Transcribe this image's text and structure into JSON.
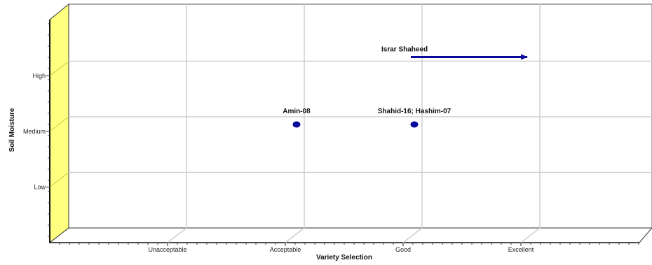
{
  "chart_data": {
    "type": "scatter",
    "title": "",
    "xlabel": "Variety Selection",
    "ylabel": "Soil Moisture",
    "x_categories": [
      "Unacceptable",
      "Acceptable",
      "Good",
      "Excellent"
    ],
    "y_categories": [
      "Low",
      "Medium",
      "High"
    ],
    "grid": true,
    "points": [
      {
        "label": "Amin-08",
        "x": "Acceptable",
        "y": "Medium"
      },
      {
        "label": "Shahid-16; Hashim-07",
        "x": "Good",
        "y": "Medium"
      }
    ],
    "arrows": [
      {
        "label": "Israr Shaheed",
        "y": "High",
        "x_from": "Good",
        "x_to": "Excellent"
      }
    ],
    "colors": {
      "wall": "#ffff80",
      "marker": "#0a0a9c",
      "grid": "#cfcfcf"
    }
  }
}
